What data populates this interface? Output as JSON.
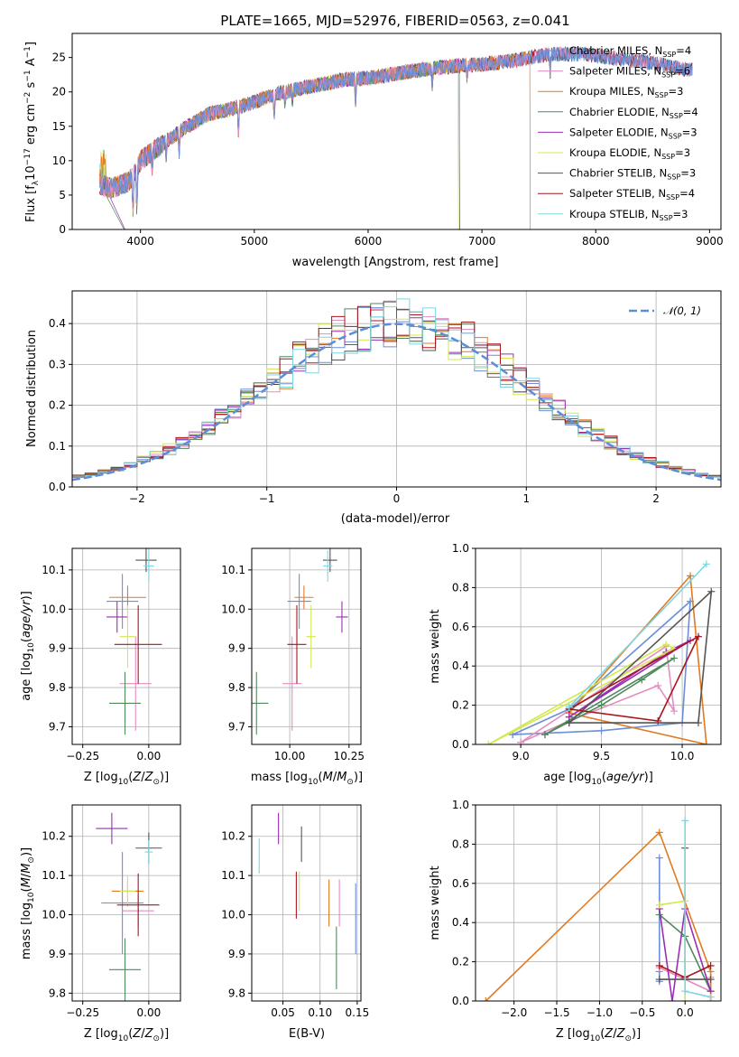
{
  "figure_title": "PLATE=1665, MJD=52976, FIBERID=0563, z=0.041",
  "colors": {
    "Chabrier MILES": "#6b8fd8",
    "Salpeter MILES": "#e58dc0",
    "Kroupa MILES": "#e07b22",
    "Chabrier ELODIE": "#4f8a5c",
    "Salpeter ELODIE": "#9a2fb3",
    "Kroupa ELODIE": "#d3e84e",
    "Chabrier STELIB": "#555555",
    "Salpeter STELIB": "#a8161e",
    "Kroupa STELIB": "#7fd6e0",
    "normal": "#5b8dd9"
  },
  "chart_data": [
    {
      "id": "spectrum",
      "type": "line",
      "xlabel": "wavelength [Angstrom, rest frame]",
      "ylabel": "Flux [f_λ10^-17 erg cm^-2 s^-1 A^-1]",
      "xlim": [
        3400,
        9100
      ],
      "ylim": [
        0,
        28.5
      ],
      "xticks": [
        4000,
        5000,
        6000,
        7000,
        8000,
        9000
      ],
      "yticks": [
        0,
        5,
        10,
        15,
        20,
        25
      ],
      "legend_position": "top-right",
      "continuum": {
        "x": [
          3640,
          3750,
          3900,
          4000,
          4200,
          4400,
          4600,
          4800,
          5000,
          5200,
          5500,
          5800,
          6000,
          6300,
          6600,
          6800,
          7000,
          7300,
          7600,
          7900,
          8200,
          8500,
          8800
        ],
        "y": [
          6.5,
          6.0,
          7.0,
          10.0,
          12.5,
          14.8,
          16.8,
          17.5,
          18.5,
          19.8,
          20.8,
          21.8,
          22.0,
          22.8,
          23.5,
          23.8,
          24.0,
          24.6,
          25.5,
          25.5,
          24.8,
          24.2,
          23.2
        ]
      },
      "series": [
        {
          "name": "Chabrier MILES",
          "n_ssp": "4",
          "end_x": 8850
        },
        {
          "name": "Salpeter MILES",
          "n_ssp": "6",
          "end_x": 8850
        },
        {
          "name": "Kroupa MILES",
          "n_ssp": "3",
          "end_x": 7420
        },
        {
          "name": "Chabrier ELODIE",
          "n_ssp": "4",
          "end_x": 6800
        },
        {
          "name": "Salpeter ELODIE",
          "n_ssp": "3",
          "end_x": 6800
        },
        {
          "name": "Kroupa ELODIE",
          "n_ssp": "3",
          "end_x": 6790
        },
        {
          "name": "Chabrier STELIB",
          "n_ssp": "3",
          "end_x": 8850
        },
        {
          "name": "Salpeter STELIB",
          "n_ssp": "4",
          "end_x": 8850
        },
        {
          "name": "Kroupa STELIB",
          "n_ssp": "3",
          "end_x": 8850
        }
      ]
    },
    {
      "id": "residual_histogram",
      "type": "histogram",
      "xlabel": "(data-model)/error",
      "ylabel": "Normed distribution",
      "xlim": [
        -2.5,
        2.5
      ],
      "ylim": [
        0,
        0.48
      ],
      "xticks": [
        -2,
        -1,
        0,
        1,
        2
      ],
      "yticks": [
        0.0,
        0.1,
        0.2,
        0.3,
        0.4
      ],
      "bin_width": 0.1,
      "normal_curve_label": "𝒩(0, 1)",
      "legend_position": "top-right",
      "grid": true
    },
    {
      "id": "age_vs_Z",
      "type": "errorbar",
      "xlabel": "Z [log10(Z/Z⊙)]",
      "ylabel": "age  [log10(age/yr)]",
      "xlim": [
        -0.29,
        0.12
      ],
      "ylim": [
        9.655,
        10.155
      ],
      "xticks": [
        -0.25,
        0.0
      ],
      "yticks": [
        9.7,
        9.8,
        9.9,
        10.0,
        10.1
      ],
      "grid": true,
      "points": [
        {
          "model": "Chabrier MILES",
          "x": -0.1,
          "y": 10.02,
          "xerr": 0.06,
          "yerr": 0.07
        },
        {
          "model": "Salpeter MILES",
          "x": -0.05,
          "y": 9.81,
          "xerr": 0.06,
          "yerr": 0.12
        },
        {
          "model": "Kroupa MILES",
          "x": -0.08,
          "y": 10.03,
          "xerr": 0.07,
          "yerr": 0.03
        },
        {
          "model": "Chabrier ELODIE",
          "x": -0.09,
          "y": 9.76,
          "xerr": 0.06,
          "yerr": 0.08
        },
        {
          "model": "Salpeter ELODIE",
          "x": -0.12,
          "y": 9.98,
          "xerr": 0.04,
          "yerr": 0.04
        },
        {
          "model": "Kroupa ELODIE",
          "x": -0.08,
          "y": 9.93,
          "xerr": 0.03,
          "yerr": 0.08
        },
        {
          "model": "Chabrier STELIB",
          "x": -0.01,
          "y": 10.125,
          "xerr": 0.04,
          "yerr": 0.03
        },
        {
          "model": "Salpeter STELIB",
          "x": -0.04,
          "y": 9.91,
          "xerr": 0.09,
          "yerr": 0.1
        },
        {
          "model": "Kroupa STELIB",
          "x": 0.0,
          "y": 10.11,
          "xerr": 0.02,
          "yerr": 0.04
        }
      ]
    },
    {
      "id": "age_vs_mass",
      "type": "errorbar",
      "xlabel": "mass [log10(M/M⊙)]",
      "ylabel": "",
      "xlim": [
        9.84,
        10.3
      ],
      "ylim": [
        9.655,
        10.155
      ],
      "xticks": [
        10.0,
        10.25
      ],
      "yticks": [
        9.7,
        9.8,
        9.9,
        10.0,
        10.1
      ],
      "grid": true,
      "points": [
        {
          "model": "Chabrier MILES",
          "x": 10.04,
          "y": 10.02,
          "xerr": 0.05,
          "yerr": 0.07
        },
        {
          "model": "Salpeter MILES",
          "x": 10.01,
          "y": 9.81,
          "xerr": 0.04,
          "yerr": 0.12
        },
        {
          "model": "Kroupa MILES",
          "x": 10.06,
          "y": 10.03,
          "xerr": 0.04,
          "yerr": 0.03
        },
        {
          "model": "Chabrier ELODIE",
          "x": 9.86,
          "y": 9.76,
          "xerr": 0.05,
          "yerr": 0.08
        },
        {
          "model": "Salpeter ELODIE",
          "x": 10.22,
          "y": 9.98,
          "xerr": 0.025,
          "yerr": 0.04
        },
        {
          "model": "Kroupa ELODIE",
          "x": 10.09,
          "y": 9.93,
          "xerr": 0.02,
          "yerr": 0.08
        },
        {
          "model": "Chabrier STELIB",
          "x": 10.17,
          "y": 10.125,
          "xerr": 0.03,
          "yerr": 0.03
        },
        {
          "model": "Salpeter STELIB",
          "x": 10.03,
          "y": 9.91,
          "xerr": 0.04,
          "yerr": 0.1
        },
        {
          "model": "Kroupa STELIB",
          "x": 10.16,
          "y": 10.11,
          "xerr": 0.02,
          "yerr": 0.04
        }
      ]
    },
    {
      "id": "mass_weight_vs_age",
      "type": "line",
      "xlabel": "age  [log10(age/yr)]",
      "ylabel": "mass weight",
      "xlim": [
        8.72,
        10.24
      ],
      "ylim": [
        0.0,
        1.0
      ],
      "xticks": [
        9.0,
        9.5,
        10.0
      ],
      "yticks": [
        0.0,
        0.2,
        0.4,
        0.6,
        0.8,
        1.0
      ],
      "grid": true,
      "series": [
        {
          "model": "Chabrier MILES",
          "x": [
            8.95,
            9.5,
            10.0,
            10.05,
            9.3,
            8.95
          ],
          "y": [
            0.05,
            0.07,
            0.11,
            0.73,
            0.18,
            0.05
          ]
        },
        {
          "model": "Salpeter MILES",
          "x": [
            9.0,
            9.3,
            9.85,
            9.95,
            9.9,
            9.0
          ],
          "y": [
            0.01,
            0.12,
            0.3,
            0.17,
            0.5,
            0.01
          ]
        },
        {
          "model": "Kroupa MILES",
          "x": [
            9.3,
            10.05,
            10.15,
            9.3
          ],
          "y": [
            0.16,
            0.86,
            0.0,
            0.16
          ]
        },
        {
          "model": "Chabrier ELODIE",
          "x": [
            9.15,
            9.5,
            9.75,
            9.95,
            9.15
          ],
          "y": [
            0.05,
            0.2,
            0.33,
            0.44,
            0.05
          ]
        },
        {
          "model": "Salpeter ELODIE",
          "x": [
            9.3,
            9.9,
            10.05,
            9.3
          ],
          "y": [
            0.14,
            0.47,
            0.53,
            0.14
          ]
        },
        {
          "model": "Kroupa ELODIE",
          "x": [
            8.8,
            9.9,
            9.95,
            8.8
          ],
          "y": [
            0.0,
            0.51,
            0.49,
            0.0
          ]
        },
        {
          "model": "Chabrier STELIB",
          "x": [
            9.3,
            10.1,
            10.18,
            9.3
          ],
          "y": [
            0.11,
            0.11,
            0.78,
            0.11
          ]
        },
        {
          "model": "Salpeter STELIB",
          "x": [
            9.3,
            9.85,
            10.1,
            9.3
          ],
          "y": [
            0.18,
            0.12,
            0.55,
            0.18
          ]
        },
        {
          "model": "Kroupa STELIB",
          "x": [
            9.3,
            10.15,
            9.3
          ],
          "y": [
            0.19,
            0.92,
            0.19
          ]
        }
      ]
    },
    {
      "id": "mass_vs_Z",
      "type": "errorbar",
      "xlabel": "Z [log10(Z/Z⊙)]",
      "ylabel": "mass [log10(M/M⊙)]",
      "xlim": [
        -0.29,
        0.12
      ],
      "ylim": [
        9.78,
        10.28
      ],
      "xticks": [
        -0.25,
        0.0
      ],
      "yticks": [
        9.8,
        9.9,
        10.0,
        10.1,
        10.2
      ],
      "grid": true,
      "points": [
        {
          "model": "Chabrier MILES",
          "x": -0.1,
          "y": 10.03,
          "xerr": 0.08,
          "yerr": 0.13
        },
        {
          "model": "Salpeter MILES",
          "x": -0.04,
          "y": 10.01,
          "xerr": 0.06,
          "yerr": 0.04
        },
        {
          "model": "Kroupa MILES",
          "x": -0.08,
          "y": 10.06,
          "xerr": 0.06,
          "yerr": 0.03
        },
        {
          "model": "Chabrier ELODIE",
          "x": -0.09,
          "y": 9.86,
          "xerr": 0.06,
          "yerr": 0.08
        },
        {
          "model": "Salpeter ELODIE",
          "x": -0.14,
          "y": 10.22,
          "xerr": 0.06,
          "yerr": 0.04
        },
        {
          "model": "Kroupa ELODIE",
          "x": -0.08,
          "y": 10.06,
          "xerr": 0.03,
          "yerr": 0.04
        },
        {
          "model": "Chabrier STELIB",
          "x": 0.0,
          "y": 10.17,
          "xerr": 0.05,
          "yerr": 0.04
        },
        {
          "model": "Salpeter STELIB",
          "x": -0.04,
          "y": 10.025,
          "xerr": 0.08,
          "yerr": 0.08
        },
        {
          "model": "Kroupa STELIB",
          "x": 0.0,
          "y": 10.16,
          "xerr": 0.015,
          "yerr": 0.03
        }
      ]
    },
    {
      "id": "mass_vs_EBV",
      "type": "errorbar",
      "xlabel": "E(B-V)",
      "ylabel": "",
      "xlim": [
        0.008,
        0.155
      ],
      "ylim": [
        9.78,
        10.28
      ],
      "xticks": [
        0.05,
        0.1,
        0.15
      ],
      "yticks": [
        9.8,
        9.9,
        10.0,
        10.1,
        10.2
      ],
      "grid": true,
      "points": [
        {
          "model": "Chabrier MILES",
          "x": 0.148,
          "y": 9.99,
          "xerr": 0,
          "yerr": 0.09
        },
        {
          "model": "Salpeter MILES",
          "x": 0.126,
          "y": 10.03,
          "xerr": 0,
          "yerr": 0.06
        },
        {
          "model": "Kroupa MILES",
          "x": 0.112,
          "y": 10.03,
          "xerr": 0,
          "yerr": 0.06
        },
        {
          "model": "Chabrier ELODIE",
          "x": 0.122,
          "y": 9.89,
          "xerr": 0,
          "yerr": 0.08
        },
        {
          "model": "Salpeter ELODIE",
          "x": 0.044,
          "y": 10.22,
          "xerr": 0,
          "yerr": 0.04
        },
        {
          "model": "Kroupa ELODIE",
          "x": 0.072,
          "y": 10.06,
          "xerr": 0,
          "yerr": 0.05
        },
        {
          "model": "Chabrier STELIB",
          "x": 0.075,
          "y": 10.18,
          "xerr": 0,
          "yerr": 0.045
        },
        {
          "model": "Salpeter STELIB",
          "x": 0.068,
          "y": 10.05,
          "xerr": 0,
          "yerr": 0.06
        },
        {
          "model": "Kroupa STELIB",
          "x": 0.018,
          "y": 10.15,
          "xerr": 0,
          "yerr": 0.045
        }
      ]
    },
    {
      "id": "mass_weight_vs_Z",
      "type": "line",
      "xlabel": "Z [log10(Z/Z⊙)]",
      "ylabel": "mass weight",
      "xlim": [
        -2.45,
        0.42
      ],
      "ylim": [
        0.0,
        1.0
      ],
      "xticks": [
        -2.0,
        -1.5,
        -1.0,
        -0.5,
        0.0
      ],
      "yticks": [
        0.0,
        0.2,
        0.4,
        0.6,
        0.8,
        1.0
      ],
      "grid": true,
      "series": [
        {
          "model": "Chabrier MILES",
          "x": [
            -0.3,
            -0.3,
            -0.3
          ],
          "y": [
            0.73,
            0.15,
            0.1
          ]
        },
        {
          "model": "Salpeter MILES",
          "x": [
            -0.3,
            0.3,
            0.3
          ],
          "y": [
            0.17,
            0.05,
            0.12
          ]
        },
        {
          "model": "Kroupa MILES",
          "x": [
            -2.33,
            -0.3,
            0.3,
            0.3
          ],
          "y": [
            0.0,
            0.86,
            0.15,
            0.0
          ]
        },
        {
          "model": "Chabrier ELODIE",
          "x": [
            -0.3,
            0.0,
            0.3
          ],
          "y": [
            0.44,
            0.33,
            0.05
          ]
        },
        {
          "model": "Salpeter ELODIE",
          "x": [
            -0.3,
            -0.15,
            0.0,
            0.3
          ],
          "y": [
            0.47,
            0.0,
            0.47,
            0.05
          ]
        },
        {
          "model": "Kroupa ELODIE",
          "x": [
            -0.3,
            0.0,
            0.0
          ],
          "y": [
            0.49,
            0.51,
            0.0
          ]
        },
        {
          "model": "Chabrier STELIB",
          "x": [
            0.0,
            0.0,
            -0.3,
            0.3
          ],
          "y": [
            0.78,
            0.11,
            0.11,
            0.11
          ]
        },
        {
          "model": "Salpeter STELIB",
          "x": [
            -0.3,
            0.0,
            0.3
          ],
          "y": [
            0.18,
            0.12,
            0.18
          ]
        },
        {
          "model": "Kroupa STELIB",
          "x": [
            0.0,
            0.0,
            0.3
          ],
          "y": [
            0.92,
            0.05,
            0.02
          ]
        }
      ]
    }
  ]
}
